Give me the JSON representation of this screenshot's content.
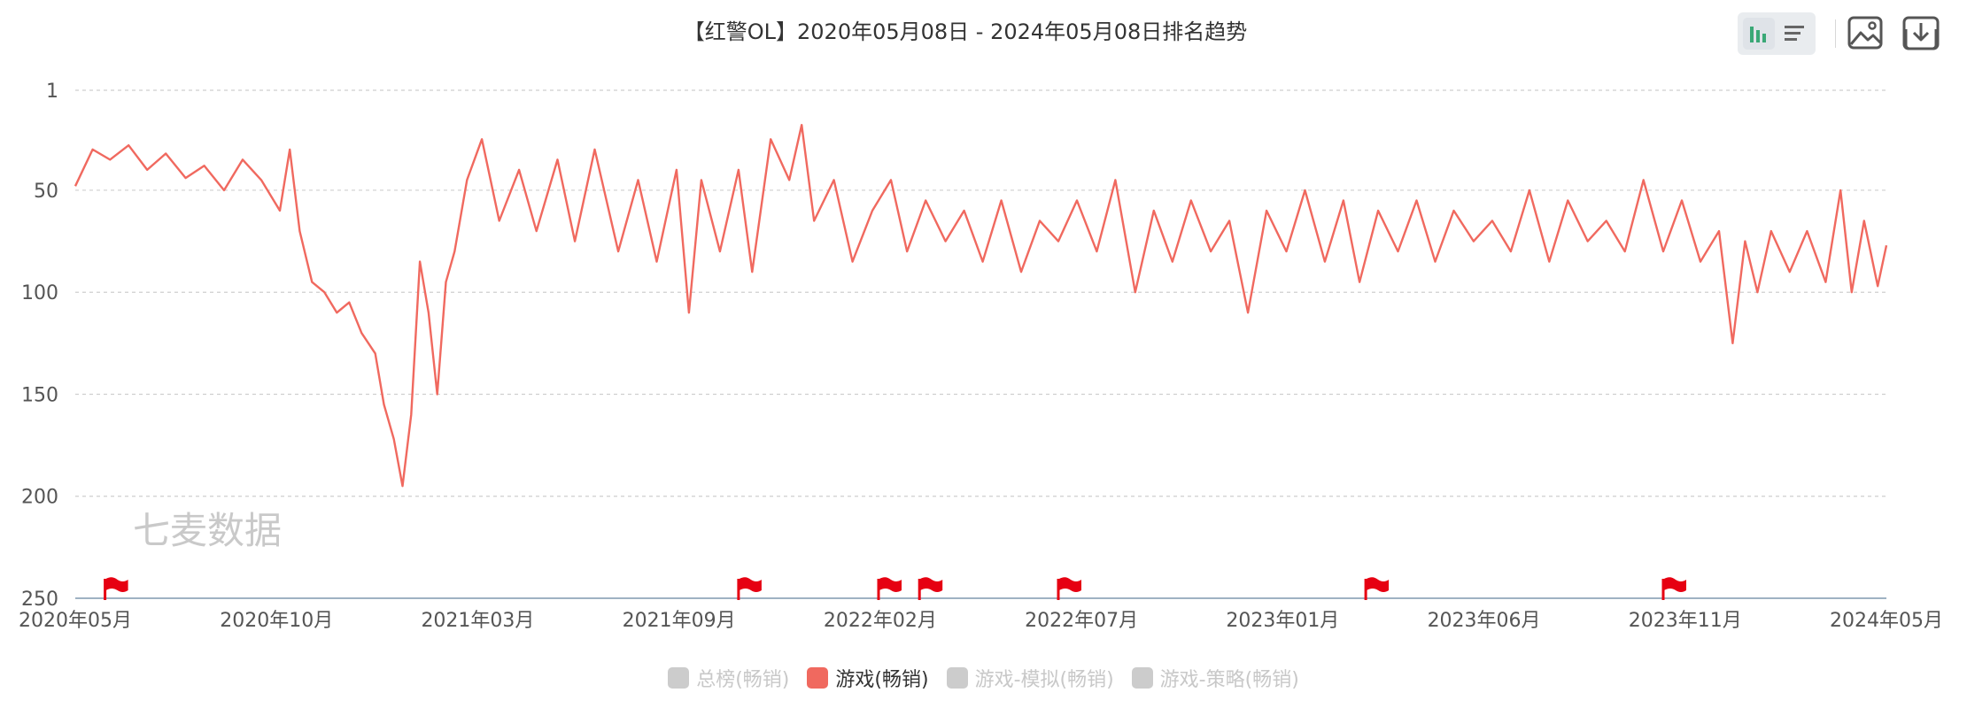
{
  "colors": {
    "series": "#f0695f",
    "grid": "#cfcfcf",
    "axis": "#9fb2c3",
    "flag": "#e60012",
    "inactive": "#cccccc"
  },
  "toolbar": {
    "view_toggle_icons": [
      "bar-chart-icon",
      "list-icon"
    ],
    "save_image_icon": "image-icon",
    "download_icon": "download-icon"
  },
  "chart_data": {
    "type": "line",
    "title": "【红警OL】2020年05月08日 - 2024年05月08日排名趋势",
    "watermark": "七麦数据",
    "y_axis": {
      "inverted": true,
      "ylim": [
        1,
        250
      ],
      "ticks": [
        "1",
        "50",
        "100",
        "150",
        "200",
        "250"
      ],
      "tick_values": [
        1,
        50,
        100,
        150,
        200,
        250
      ]
    },
    "x_axis": {
      "range": [
        "2020-05-08",
        "2024-05-08"
      ],
      "tick_labels": [
        "2020年05月",
        "2020年10月",
        "2021年03月",
        "2021年09月",
        "2022年02月",
        "2022年07月",
        "2023年01月",
        "2023年06月",
        "2023年11月",
        "2024年05月"
      ]
    },
    "grid": "horizontal dashed",
    "series": [
      {
        "name": "游戏(畅销)",
        "color": "#f0695f",
        "points": [
          [
            "2020-05-08",
            48
          ],
          [
            "2020-05-22",
            30
          ],
          [
            "2020-06-05",
            35
          ],
          [
            "2020-06-20",
            28
          ],
          [
            "2020-07-05",
            40
          ],
          [
            "2020-07-20",
            32
          ],
          [
            "2020-08-05",
            44
          ],
          [
            "2020-08-20",
            38
          ],
          [
            "2020-09-05",
            50
          ],
          [
            "2020-09-20",
            35
          ],
          [
            "2020-10-05",
            45
          ],
          [
            "2020-10-20",
            60
          ],
          [
            "2020-10-28",
            30
          ],
          [
            "2020-11-05",
            70
          ],
          [
            "2020-11-15",
            95
          ],
          [
            "2020-11-25",
            100
          ],
          [
            "2020-12-05",
            110
          ],
          [
            "2020-12-15",
            105
          ],
          [
            "2020-12-25",
            120
          ],
          [
            "2021-01-05",
            130
          ],
          [
            "2021-01-12",
            155
          ],
          [
            "2021-01-20",
            172
          ],
          [
            "2021-01-27",
            195
          ],
          [
            "2021-02-03",
            160
          ],
          [
            "2021-02-10",
            85
          ],
          [
            "2021-02-17",
            110
          ],
          [
            "2021-02-24",
            150
          ],
          [
            "2021-03-03",
            95
          ],
          [
            "2021-03-10",
            80
          ],
          [
            "2021-03-20",
            45
          ],
          [
            "2021-04-01",
            25
          ],
          [
            "2021-04-15",
            65
          ],
          [
            "2021-05-01",
            40
          ],
          [
            "2021-05-15",
            70
          ],
          [
            "2021-06-01",
            35
          ],
          [
            "2021-06-15",
            75
          ],
          [
            "2021-07-01",
            30
          ],
          [
            "2021-07-20",
            80
          ],
          [
            "2021-08-05",
            45
          ],
          [
            "2021-08-20",
            85
          ],
          [
            "2021-09-05",
            40
          ],
          [
            "2021-09-15",
            110
          ],
          [
            "2021-09-25",
            45
          ],
          [
            "2021-10-10",
            80
          ],
          [
            "2021-10-25",
            40
          ],
          [
            "2021-11-05",
            90
          ],
          [
            "2021-11-20",
            25
          ],
          [
            "2021-12-05",
            45
          ],
          [
            "2021-12-15",
            18
          ],
          [
            "2021-12-25",
            65
          ],
          [
            "2022-01-10",
            45
          ],
          [
            "2022-01-25",
            85
          ],
          [
            "2022-02-10",
            60
          ],
          [
            "2022-02-25",
            45
          ],
          [
            "2022-03-10",
            80
          ],
          [
            "2022-03-25",
            55
          ],
          [
            "2022-04-10",
            75
          ],
          [
            "2022-04-25",
            60
          ],
          [
            "2022-05-10",
            85
          ],
          [
            "2022-05-25",
            55
          ],
          [
            "2022-06-10",
            90
          ],
          [
            "2022-06-25",
            65
          ],
          [
            "2022-07-10",
            75
          ],
          [
            "2022-07-25",
            55
          ],
          [
            "2022-08-10",
            80
          ],
          [
            "2022-08-25",
            45
          ],
          [
            "2022-09-10",
            100
          ],
          [
            "2022-09-25",
            60
          ],
          [
            "2022-10-10",
            85
          ],
          [
            "2022-10-25",
            55
          ],
          [
            "2022-11-10",
            80
          ],
          [
            "2022-11-25",
            65
          ],
          [
            "2022-12-10",
            110
          ],
          [
            "2022-12-25",
            60
          ],
          [
            "2023-01-10",
            80
          ],
          [
            "2023-01-25",
            50
          ],
          [
            "2023-02-10",
            85
          ],
          [
            "2023-02-25",
            55
          ],
          [
            "2023-03-10",
            95
          ],
          [
            "2023-03-25",
            60
          ],
          [
            "2023-04-10",
            80
          ],
          [
            "2023-04-25",
            55
          ],
          [
            "2023-05-10",
            85
          ],
          [
            "2023-05-25",
            60
          ],
          [
            "2023-06-10",
            75
          ],
          [
            "2023-06-25",
            65
          ],
          [
            "2023-07-10",
            80
          ],
          [
            "2023-07-25",
            50
          ],
          [
            "2023-08-10",
            85
          ],
          [
            "2023-08-25",
            55
          ],
          [
            "2023-09-10",
            75
          ],
          [
            "2023-09-25",
            65
          ],
          [
            "2023-10-10",
            80
          ],
          [
            "2023-10-25",
            45
          ],
          [
            "2023-11-10",
            80
          ],
          [
            "2023-11-25",
            55
          ],
          [
            "2023-12-10",
            85
          ],
          [
            "2023-12-25",
            70
          ],
          [
            "2024-01-05",
            125
          ],
          [
            "2024-01-15",
            75
          ],
          [
            "2024-01-25",
            100
          ],
          [
            "2024-02-05",
            70
          ],
          [
            "2024-02-20",
            90
          ],
          [
            "2024-03-05",
            70
          ],
          [
            "2024-03-20",
            95
          ],
          [
            "2024-04-01",
            50
          ],
          [
            "2024-04-10",
            100
          ],
          [
            "2024-04-20",
            65
          ],
          [
            "2024-05-01",
            97
          ],
          [
            "2024-05-08",
            77
          ]
        ]
      }
    ],
    "event_flags": [
      "2020-06-01",
      "2021-10-25",
      "2022-02-15",
      "2022-03-20",
      "2022-07-10",
      "2023-03-15",
      "2023-11-10"
    ],
    "legend": [
      {
        "label": "总榜(畅销)",
        "active": false
      },
      {
        "label": "游戏(畅销)",
        "active": true
      },
      {
        "label": "游戏-模拟(畅销)",
        "active": false
      },
      {
        "label": "游戏-策略(畅销)",
        "active": false
      }
    ],
    "legend_placement": "bottom-center"
  }
}
